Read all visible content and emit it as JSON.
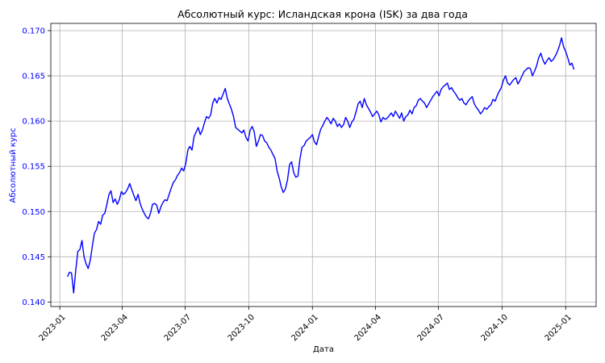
{
  "chart_data": {
    "type": "line",
    "title": "Абсолютный курс: Исландская крона (ISK) за два года",
    "xlabel": "Дата",
    "ylabel": "Абсолютный курс",
    "ylim": [
      0.1395,
      0.1708
    ],
    "xlim": [
      "2022-12-19",
      "2025-02-14"
    ],
    "grid": true,
    "line_color": "#0000ff",
    "label_color": "#0000ff",
    "x_ticks": [
      {
        "date": "2023-01-01",
        "label": "2023-01"
      },
      {
        "date": "2023-04-01",
        "label": "2023-04"
      },
      {
        "date": "2023-07-01",
        "label": "2023-07"
      },
      {
        "date": "2023-10-01",
        "label": "2023-10"
      },
      {
        "date": "2024-01-01",
        "label": "2024-01"
      },
      {
        "date": "2024-04-01",
        "label": "2024-04"
      },
      {
        "date": "2024-07-01",
        "label": "2024-07"
      },
      {
        "date": "2024-10-01",
        "label": "2024-10"
      },
      {
        "date": "2025-01-01",
        "label": "2025-01"
      }
    ],
    "y_ticks": [
      {
        "value": 0.14,
        "label": "0.140"
      },
      {
        "value": 0.145,
        "label": "0.145"
      },
      {
        "value": 0.15,
        "label": "0.150"
      },
      {
        "value": 0.155,
        "label": "0.155"
      },
      {
        "value": 0.16,
        "label": "0.160"
      },
      {
        "value": 0.165,
        "label": "0.165"
      },
      {
        "value": 0.17,
        "label": "0.170"
      }
    ],
    "series": [
      {
        "x": [
          "2023-01-12",
          "2023-01-15",
          "2023-01-18",
          "2023-01-21",
          "2023-01-24",
          "2023-01-27",
          "2023-01-30",
          "2023-02-02",
          "2023-02-05",
          "2023-02-08",
          "2023-02-11",
          "2023-02-14",
          "2023-02-17",
          "2023-02-20",
          "2023-02-23",
          "2023-02-26",
          "2023-03-01",
          "2023-03-04",
          "2023-03-07",
          "2023-03-10",
          "2023-03-13",
          "2023-03-16",
          "2023-03-19",
          "2023-03-22",
          "2023-03-25",
          "2023-03-28",
          "2023-03-31",
          "2023-04-03",
          "2023-04-06",
          "2023-04-09",
          "2023-04-12",
          "2023-04-15",
          "2023-04-18",
          "2023-04-21",
          "2023-04-24",
          "2023-04-27",
          "2023-04-30",
          "2023-05-03",
          "2023-05-06",
          "2023-05-09",
          "2023-05-12",
          "2023-05-15",
          "2023-05-18",
          "2023-05-21",
          "2023-05-24",
          "2023-05-27",
          "2023-05-30",
          "2023-06-02",
          "2023-06-05",
          "2023-06-08",
          "2023-06-11",
          "2023-06-14",
          "2023-06-17",
          "2023-06-20",
          "2023-06-23",
          "2023-06-26",
          "2023-06-29",
          "2023-07-02",
          "2023-07-05",
          "2023-07-08",
          "2023-07-11",
          "2023-07-14",
          "2023-07-17",
          "2023-07-20",
          "2023-07-23",
          "2023-07-26",
          "2023-07-29",
          "2023-08-01",
          "2023-08-04",
          "2023-08-07",
          "2023-08-10",
          "2023-08-13",
          "2023-08-16",
          "2023-08-19",
          "2023-08-22",
          "2023-08-25",
          "2023-08-28",
          "2023-08-31",
          "2023-09-03",
          "2023-09-06",
          "2023-09-09",
          "2023-09-12",
          "2023-09-15",
          "2023-09-18",
          "2023-09-21",
          "2023-09-24",
          "2023-09-27",
          "2023-09-30",
          "2023-10-03",
          "2023-10-06",
          "2023-10-09",
          "2023-10-12",
          "2023-10-15",
          "2023-10-18",
          "2023-10-21",
          "2023-10-24",
          "2023-10-27",
          "2023-10-30",
          "2023-11-02",
          "2023-11-05",
          "2023-11-08",
          "2023-11-11",
          "2023-11-14",
          "2023-11-17",
          "2023-11-20",
          "2023-11-23",
          "2023-11-26",
          "2023-11-29",
          "2023-12-02",
          "2023-12-05",
          "2023-12-08",
          "2023-12-11",
          "2023-12-14",
          "2023-12-17",
          "2023-12-20",
          "2023-12-23",
          "2023-12-26",
          "2023-12-29",
          "2024-01-01",
          "2024-01-04",
          "2024-01-07",
          "2024-01-10",
          "2024-01-13",
          "2024-01-16",
          "2024-01-19",
          "2024-01-22",
          "2024-01-25",
          "2024-01-28",
          "2024-01-31",
          "2024-02-03",
          "2024-02-06",
          "2024-02-09",
          "2024-02-12",
          "2024-02-15",
          "2024-02-18",
          "2024-02-21",
          "2024-02-24",
          "2024-02-27",
          "2024-03-01",
          "2024-03-04",
          "2024-03-07",
          "2024-03-10",
          "2024-03-13",
          "2024-03-16",
          "2024-03-19",
          "2024-03-22",
          "2024-03-25",
          "2024-03-28",
          "2024-03-31",
          "2024-04-03",
          "2024-04-06",
          "2024-04-09",
          "2024-04-12",
          "2024-04-15",
          "2024-04-18",
          "2024-04-21",
          "2024-04-24",
          "2024-04-27",
          "2024-04-30",
          "2024-05-03",
          "2024-05-06",
          "2024-05-09",
          "2024-05-12",
          "2024-05-15",
          "2024-05-18",
          "2024-05-21",
          "2024-05-24",
          "2024-05-27",
          "2024-05-30",
          "2024-06-02",
          "2024-06-05",
          "2024-06-08",
          "2024-06-11",
          "2024-06-14",
          "2024-06-17",
          "2024-06-20",
          "2024-06-23",
          "2024-06-26",
          "2024-06-29",
          "2024-07-02",
          "2024-07-05",
          "2024-07-08",
          "2024-07-11",
          "2024-07-14",
          "2024-07-17",
          "2024-07-20",
          "2024-07-23",
          "2024-07-26",
          "2024-07-29",
          "2024-08-01",
          "2024-08-04",
          "2024-08-07",
          "2024-08-10",
          "2024-08-13",
          "2024-08-16",
          "2024-08-19",
          "2024-08-22",
          "2024-08-25",
          "2024-08-28",
          "2024-08-31",
          "2024-09-03",
          "2024-09-06",
          "2024-09-09",
          "2024-09-12",
          "2024-09-15",
          "2024-09-18",
          "2024-09-21",
          "2024-09-24",
          "2024-09-27",
          "2024-09-30",
          "2024-10-03",
          "2024-10-06",
          "2024-10-09",
          "2024-10-12",
          "2024-10-15",
          "2024-10-18",
          "2024-10-21",
          "2024-10-24",
          "2024-10-27",
          "2024-10-30",
          "2024-11-02",
          "2024-11-05",
          "2024-11-08",
          "2024-11-11",
          "2024-11-14",
          "2024-11-17",
          "2024-11-20",
          "2024-11-23",
          "2024-11-26",
          "2024-11-29",
          "2024-12-02",
          "2024-12-05",
          "2024-12-08",
          "2024-12-11",
          "2024-12-14",
          "2024-12-17",
          "2024-12-20",
          "2024-12-23",
          "2024-12-26",
          "2024-12-29",
          "2025-01-01",
          "2025-01-04",
          "2025-01-07",
          "2025-01-10",
          "2025-01-13"
        ],
        "y": [
          0.1428,
          0.1433,
          0.1432,
          0.141,
          0.1435,
          0.1456,
          0.1458,
          0.1468,
          0.145,
          0.1442,
          0.1437,
          0.1446,
          0.1462,
          0.1476,
          0.148,
          0.1489,
          0.1486,
          0.1496,
          0.1498,
          0.1508,
          0.1519,
          0.1523,
          0.151,
          0.1514,
          0.1508,
          0.1513,
          0.1522,
          0.1519,
          0.1521,
          0.1525,
          0.1531,
          0.1524,
          0.1518,
          0.1512,
          0.1519,
          0.1509,
          0.1503,
          0.1498,
          0.1494,
          0.1492,
          0.1498,
          0.1508,
          0.1509,
          0.1507,
          0.1498,
          0.1505,
          0.151,
          0.1513,
          0.1512,
          0.1519,
          0.1526,
          0.1532,
          0.1535,
          0.154,
          0.1543,
          0.1548,
          0.1545,
          0.1553,
          0.1568,
          0.1572,
          0.1568,
          0.1583,
          0.1588,
          0.1593,
          0.1585,
          0.159,
          0.1598,
          0.1605,
          0.1603,
          0.1607,
          0.162,
          0.1625,
          0.162,
          0.1626,
          0.1624,
          0.163,
          0.1636,
          0.1625,
          0.1619,
          0.1613,
          0.1605,
          0.1593,
          0.1591,
          0.1589,
          0.1587,
          0.159,
          0.1582,
          0.1578,
          0.159,
          0.1594,
          0.1588,
          0.1572,
          0.1578,
          0.1585,
          0.1584,
          0.1578,
          0.1576,
          0.1571,
          0.1568,
          0.1563,
          0.1559,
          0.1545,
          0.1537,
          0.1527,
          0.1521,
          0.1525,
          0.1535,
          0.1552,
          0.1555,
          0.1543,
          0.1538,
          0.1539,
          0.1558,
          0.1571,
          0.1573,
          0.1578,
          0.158,
          0.1582,
          0.1585,
          0.1577,
          0.1574,
          0.1583,
          0.1591,
          0.1595,
          0.16,
          0.1604,
          0.1601,
          0.1597,
          0.1603,
          0.16,
          0.1594,
          0.1597,
          0.1593,
          0.1596,
          0.1604,
          0.16,
          0.1593,
          0.1599,
          0.1602,
          0.161,
          0.1619,
          0.1622,
          0.1615,
          0.1625,
          0.1618,
          0.1614,
          0.161,
          0.1605,
          0.1608,
          0.1611,
          0.1607,
          0.1599,
          0.1604,
          0.1602,
          0.1603,
          0.1606,
          0.1609,
          0.1605,
          0.1611,
          0.1607,
          0.1603,
          0.1609,
          0.16,
          0.1605,
          0.1607,
          0.1612,
          0.1608,
          0.1615,
          0.1617,
          0.1623,
          0.1625,
          0.1622,
          0.162,
          0.1615,
          0.1619,
          0.1623,
          0.1627,
          0.163,
          0.1633,
          0.1628,
          0.1635,
          0.1638,
          0.164,
          0.1642,
          0.1635,
          0.1637,
          0.1633,
          0.163,
          0.1626,
          0.1623,
          0.1625,
          0.162,
          0.1618,
          0.1622,
          0.1625,
          0.1627,
          0.1619,
          0.1615,
          0.1612,
          0.1608,
          0.1611,
          0.1615,
          0.1613,
          0.1616,
          0.1618,
          0.1624,
          0.1622,
          0.1628,
          0.1633,
          0.1637,
          0.1645,
          0.165,
          0.1642,
          0.164,
          0.1643,
          0.1646,
          0.1648,
          0.1641,
          0.1645,
          0.165,
          0.1655,
          0.1657,
          0.1659,
          0.1658,
          0.165,
          0.1655,
          0.1661,
          0.167,
          0.1675,
          0.1668,
          0.1663,
          0.1667,
          0.167,
          0.1666,
          0.1668,
          0.1672,
          0.1677,
          0.1683,
          0.1692,
          0.1682,
          0.1677,
          0.167,
          0.1662,
          0.1664,
          0.1657
        ]
      }
    ]
  }
}
